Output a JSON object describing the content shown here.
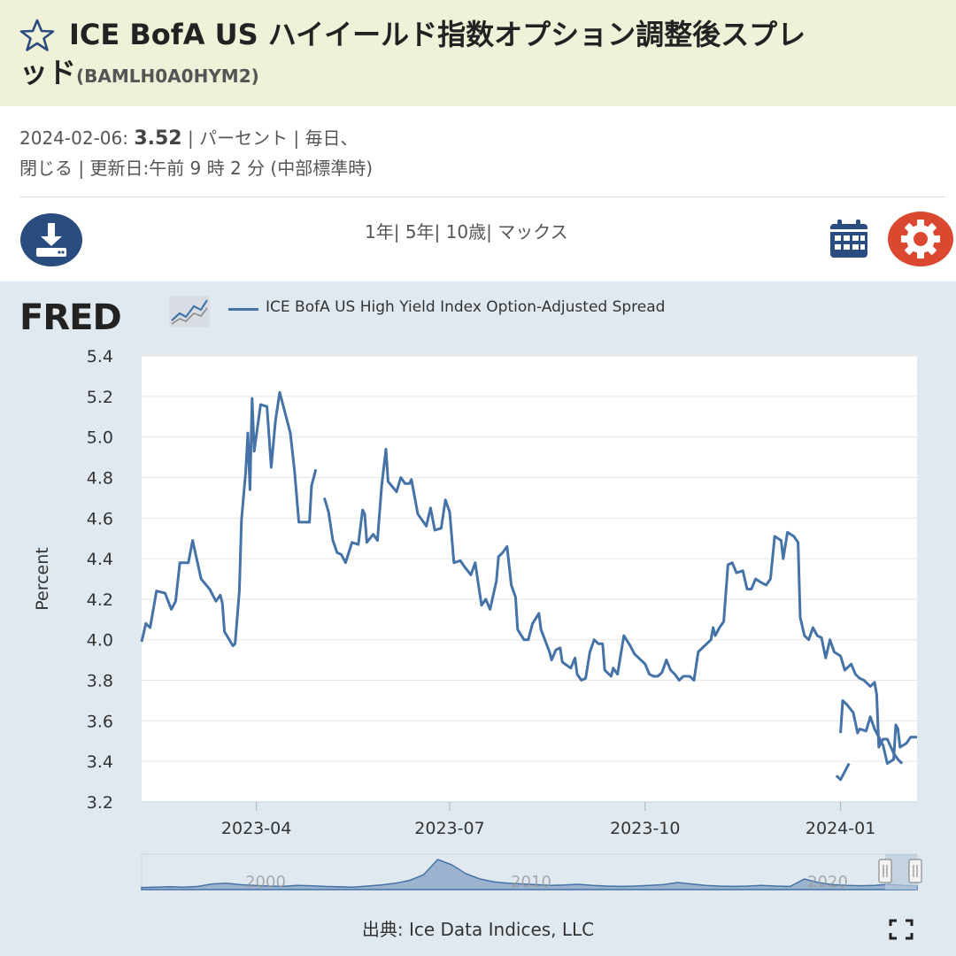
{
  "header": {
    "title_line1": "ICE BofA US ハイイールド指数オプション調整後スプレ",
    "title_line2": "ッド",
    "series_id": "(BAMLH0A0HYM2)"
  },
  "meta": {
    "date": "2024-02-06:",
    "value": "3.52",
    "units_freq": "| パーセント | 毎日、",
    "line2": "閉じる | 更新日:午前 9 時 2 分 (中部標準時)"
  },
  "toolbar": {
    "range_1y": "1年|",
    "range_5y": "5年|",
    "range_10y": "10歳|",
    "range_max": "マックス"
  },
  "chart_meta": {
    "logo": "FRED",
    "source": "出典: Ice Data Indices, LLC",
    "navigator_labels": [
      "2000",
      "2010",
      "2020"
    ]
  },
  "colors": {
    "line": "#4572a7",
    "plot_bg": "#ffffff",
    "panel_bg": "#e1e9f0",
    "header_bg": "#eff2d9",
    "icon_blue": "#2b4c7e",
    "icon_red": "#d9482f"
  },
  "chart_data": {
    "type": "line",
    "title": "",
    "ylabel": "Percent",
    "xlabel": "",
    "ylim": [
      3.2,
      5.4
    ],
    "yticks": [
      3.2,
      3.4,
      3.6,
      3.8,
      4.0,
      4.2,
      4.4,
      4.6,
      4.8,
      5.0,
      5.2,
      5.4
    ],
    "xlim": [
      "2023-02-06",
      "2024-02-06"
    ],
    "xticks": [
      {
        "date": "2023-04-01",
        "label": "2023-04"
      },
      {
        "date": "2023-07-01",
        "label": "2023-07"
      },
      {
        "date": "2023-10-01",
        "label": "2023-10"
      },
      {
        "date": "2024-01-01",
        "label": "2024-01"
      }
    ],
    "legend": "top",
    "grid": true,
    "series": [
      {
        "name": "ICE BofA US High Yield Index Option-Adjusted Spread",
        "segments": [
          [
            [
              "2023-02-06",
              3.99
            ],
            [
              "2023-02-08",
              4.08
            ],
            [
              "2023-02-10",
              4.06
            ],
            [
              "2023-02-13",
              4.24
            ],
            [
              "2023-02-17",
              4.23
            ],
            [
              "2023-02-20",
              4.15
            ],
            [
              "2023-02-22",
              4.19
            ],
            [
              "2023-02-24",
              4.38
            ],
            [
              "2023-02-28",
              4.38
            ],
            [
              "2023-03-02",
              4.49
            ],
            [
              "2023-03-06",
              4.3
            ],
            [
              "2023-03-10",
              4.25
            ],
            [
              "2023-03-13",
              4.19
            ],
            [
              "2023-03-15",
              4.22
            ],
            [
              "2023-03-16",
              4.18
            ],
            [
              "2023-03-17",
              4.04
            ],
            [
              "2023-03-21",
              3.97
            ],
            [
              "2023-03-22",
              3.98
            ],
            [
              "2023-03-24",
              4.24
            ],
            [
              "2023-03-25",
              4.59
            ],
            [
              "2023-03-27",
              4.83
            ],
            [
              "2023-03-28",
              5.02
            ],
            [
              "2023-03-29",
              4.74
            ],
            [
              "2023-03-30",
              5.19
            ],
            [
              "2023-03-31",
              4.93
            ],
            [
              "2023-04-03",
              5.16
            ],
            [
              "2023-04-06",
              5.15
            ],
            [
              "2023-04-08",
              4.85
            ],
            [
              "2023-04-10",
              5.08
            ],
            [
              "2023-04-12",
              5.22
            ],
            [
              "2023-04-17",
              5.02
            ],
            [
              "2023-04-19",
              4.83
            ],
            [
              "2023-04-21",
              4.58
            ],
            [
              "2023-04-24",
              4.58
            ],
            [
              "2023-04-26",
              4.58
            ],
            [
              "2023-04-27",
              4.76
            ],
            [
              "2023-04-29",
              4.84
            ]
          ],
          [
            [
              "2023-05-03",
              4.7
            ],
            [
              "2023-05-05",
              4.63
            ],
            [
              "2023-05-07",
              4.49
            ],
            [
              "2023-05-09",
              4.43
            ],
            [
              "2023-05-11",
              4.42
            ],
            [
              "2023-05-13",
              4.38
            ],
            [
              "2023-05-16",
              4.48
            ],
            [
              "2023-05-19",
              4.47
            ],
            [
              "2023-05-21",
              4.64
            ],
            [
              "2023-05-22",
              4.62
            ],
            [
              "2023-05-23",
              4.48
            ],
            [
              "2023-05-26",
              4.52
            ],
            [
              "2023-05-28",
              4.49
            ],
            [
              "2023-05-30",
              4.76
            ],
            [
              "2023-06-01",
              4.94
            ],
            [
              "2023-06-02",
              4.78
            ],
            [
              "2023-06-06",
              4.73
            ],
            [
              "2023-06-08",
              4.8
            ],
            [
              "2023-06-10",
              4.77
            ],
            [
              "2023-06-12",
              4.77
            ],
            [
              "2023-06-13",
              4.79
            ],
            [
              "2023-06-16",
              4.62
            ],
            [
              "2023-06-20",
              4.56
            ],
            [
              "2023-06-22",
              4.65
            ],
            [
              "2023-06-24",
              4.54
            ],
            [
              "2023-06-27",
              4.55
            ],
            [
              "2023-06-29",
              4.69
            ],
            [
              "2023-07-01",
              4.63
            ],
            [
              "2023-07-03",
              4.38
            ],
            [
              "2023-07-06",
              4.39
            ],
            [
              "2023-07-08",
              4.36
            ],
            [
              "2023-07-11",
              4.32
            ],
            [
              "2023-07-13",
              4.38
            ],
            [
              "2023-07-16",
              4.17
            ],
            [
              "2023-07-18",
              4.2
            ],
            [
              "2023-07-20",
              4.15
            ],
            [
              "2023-07-23",
              4.29
            ],
            [
              "2023-07-24",
              4.41
            ],
            [
              "2023-07-26",
              4.43
            ],
            [
              "2023-07-28",
              4.46
            ],
            [
              "2023-07-30",
              4.27
            ],
            [
              "2023-08-01",
              4.21
            ],
            [
              "2023-08-02",
              4.05
            ],
            [
              "2023-08-05",
              4.0
            ],
            [
              "2023-08-07",
              4.0
            ],
            [
              "2023-08-09",
              4.08
            ],
            [
              "2023-08-12",
              4.13
            ],
            [
              "2023-08-13",
              4.05
            ],
            [
              "2023-08-17",
              3.94
            ],
            [
              "2023-08-18",
              3.9
            ],
            [
              "2023-08-20",
              3.95
            ],
            [
              "2023-08-22",
              3.96
            ],
            [
              "2023-08-23",
              3.89
            ],
            [
              "2023-08-27",
              3.86
            ],
            [
              "2023-08-29",
              3.91
            ],
            [
              "2023-08-30",
              3.83
            ],
            [
              "2023-09-01",
              3.8
            ],
            [
              "2023-09-03",
              3.81
            ],
            [
              "2023-09-05",
              3.94
            ],
            [
              "2023-09-07",
              4.0
            ],
            [
              "2023-09-09",
              3.98
            ],
            [
              "2023-09-11",
              3.98
            ],
            [
              "2023-09-12",
              3.85
            ],
            [
              "2023-09-15",
              3.82
            ],
            [
              "2023-09-16",
              3.86
            ],
            [
              "2023-09-18",
              3.83
            ],
            [
              "2023-09-21",
              4.02
            ],
            [
              "2023-09-24",
              3.97
            ],
            [
              "2023-09-26",
              3.93
            ],
            [
              "2023-09-28",
              3.91
            ],
            [
              "2023-10-01",
              3.88
            ],
            [
              "2023-10-03",
              3.83
            ],
            [
              "2023-10-05",
              3.82
            ],
            [
              "2023-10-07",
              3.82
            ],
            [
              "2023-10-09",
              3.84
            ],
            [
              "2023-10-11",
              3.9
            ],
            [
              "2023-10-13",
              3.85
            ],
            [
              "2023-10-15",
              3.83
            ],
            [
              "2023-10-17",
              3.8
            ],
            [
              "2023-10-19",
              3.82
            ],
            [
              "2023-10-22",
              3.82
            ],
            [
              "2023-10-24",
              3.8
            ],
            [
              "2023-10-26",
              3.94
            ],
            [
              "2023-10-29",
              3.97
            ],
            [
              "2023-11-01",
              4.0
            ],
            [
              "2023-11-02",
              4.06
            ],
            [
              "2023-11-03",
              4.02
            ],
            [
              "2023-11-05",
              4.06
            ],
            [
              "2023-11-07",
              4.09
            ],
            [
              "2023-11-09",
              4.37
            ],
            [
              "2023-11-11",
              4.38
            ],
            [
              "2023-11-13",
              4.33
            ],
            [
              "2023-11-16",
              4.34
            ],
            [
              "2023-11-18",
              4.25
            ],
            [
              "2023-11-20",
              4.25
            ],
            [
              "2023-11-22",
              4.3
            ],
            [
              "2023-11-25",
              4.28
            ],
            [
              "2023-11-27",
              4.27
            ],
            [
              "2023-11-29",
              4.3
            ],
            [
              "2023-12-01",
              4.51
            ],
            [
              "2023-12-04",
              4.49
            ],
            [
              "2023-12-05",
              4.4
            ],
            [
              "2023-12-07",
              4.53
            ],
            [
              "2023-12-10",
              4.51
            ],
            [
              "2023-12-12",
              4.48
            ],
            [
              "2023-12-13",
              4.11
            ],
            [
              "2023-12-15",
              4.02
            ],
            [
              "2023-12-17",
              4.0
            ],
            [
              "2023-12-19",
              4.06
            ],
            [
              "2023-12-21",
              4.02
            ],
            [
              "2023-12-23",
              4.01
            ],
            [
              "2023-12-25",
              3.91
            ],
            [
              "2023-12-27",
              4.0
            ],
            [
              "2023-12-29",
              3.94
            ],
            [
              "2024-01-01",
              3.92
            ],
            [
              "2024-01-03",
              3.85
            ],
            [
              "2024-01-06",
              3.88
            ],
            [
              "2024-01-08",
              3.83
            ],
            [
              "2024-01-10",
              3.81
            ],
            [
              "2024-01-12",
              3.8
            ],
            [
              "2024-01-15",
              3.77
            ],
            [
              "2024-01-17",
              3.79
            ],
            [
              "2024-01-18",
              3.73
            ],
            [
              "2024-01-19",
              3.47
            ],
            [
              "2024-01-21",
              3.51
            ],
            [
              "2024-01-23",
              3.51
            ],
            [
              "2024-01-26",
              3.44
            ],
            [
              "2024-01-28",
              3.41
            ],
            [
              "2024-01-30",
              3.39
            ]
          ],
          [
            [
              "2023-12-30",
              3.33
            ],
            [
              "2024-01-01",
              3.31
            ],
            [
              "2024-01-03",
              3.35
            ],
            [
              "2024-01-05",
              3.39
            ]
          ],
          [
            [
              "2024-01-01",
              3.54
            ],
            [
              "2024-01-02",
              3.7
            ],
            [
              "2024-01-04",
              3.68
            ],
            [
              "2024-01-07",
              3.64
            ],
            [
              "2024-01-09",
              3.54
            ],
            [
              "2024-01-10",
              3.56
            ],
            [
              "2024-01-13",
              3.55
            ],
            [
              "2024-01-15",
              3.62
            ],
            [
              "2024-01-17",
              3.56
            ],
            [
              "2024-01-20",
              3.5
            ],
            [
              "2024-01-21",
              3.48
            ],
            [
              "2024-01-23",
              3.39
            ],
            [
              "2024-01-26",
              3.41
            ],
            [
              "2024-01-27",
              3.58
            ],
            [
              "2024-01-28",
              3.56
            ],
            [
              "2024-01-29",
              3.47
            ],
            [
              "2024-02-01",
              3.49
            ],
            [
              "2024-02-03",
              3.52
            ],
            [
              "2024-02-06",
              3.52
            ]
          ]
        ]
      }
    ]
  }
}
